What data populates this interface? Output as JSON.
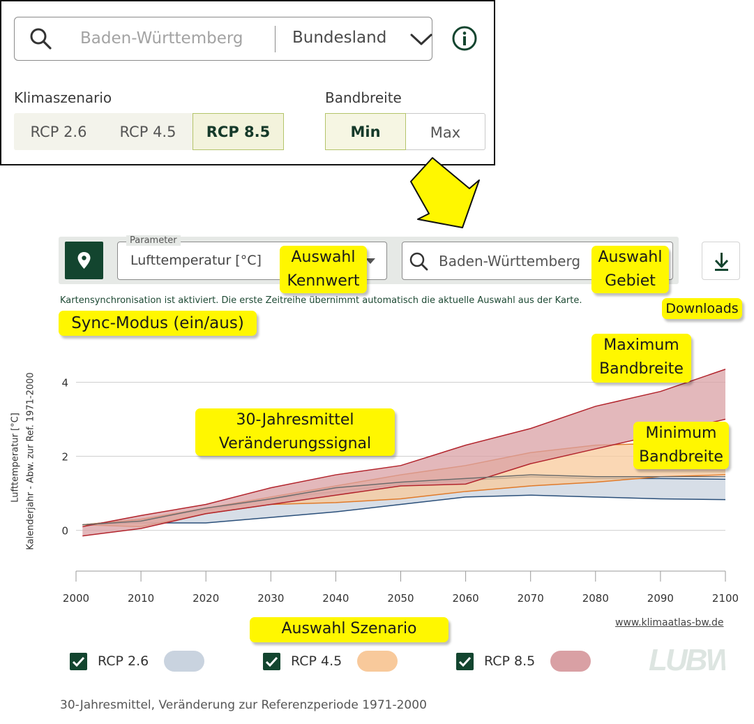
{
  "top_panel": {
    "search_placeholder": "Baden-Württemberg",
    "level_select": "Bundesland",
    "scenario_label": "Klimaszenario",
    "scenarios": [
      "RCP 2.6",
      "RCP 4.5",
      "RCP 8.5"
    ],
    "scenario_selected": "RCP 8.5",
    "bandwidth_label": "Bandbreite",
    "bandwidth_options": [
      "Min",
      "Max"
    ],
    "bandwidth_selected": "Min"
  },
  "toolbar": {
    "parameter_legend": "Parameter",
    "parameter_value": "Lufttemperatur [°C]",
    "region_value": "Baden-Württemberg",
    "sync_text": "Kartensynchronisation ist aktiviert. Die erste Zeitreihe übernimmt automatisch die aktuelle Auswahl aus der Karte."
  },
  "callouts": {
    "auswahl_kennwert": "Auswahl\nKennwert",
    "auswahl_gebiet": "Auswahl\nGebiet",
    "downloads": "Downloads",
    "sync_modus": "Sync-Modus (ein/aus)",
    "maximum_bandbreite": "Maximum\nBandbreite",
    "jahresmittel": "30-Jahresmittel\nVeränderungssignal",
    "minimum_bandbreite": "Minimum\nBandbreite",
    "auswahl_szenario": "Auswahl Szenario"
  },
  "chart_data": {
    "type": "area",
    "ylabel_line1": "Lufttemperatur [°C]",
    "ylabel_line2": "Kalenderjahr - Abw. zur Ref. 1971-2000",
    "xlim": [
      2000,
      2100
    ],
    "ylim": [
      -1.1,
      4.8
    ],
    "xticks": [
      2000,
      2010,
      2020,
      2030,
      2040,
      2050,
      2060,
      2070,
      2080,
      2090,
      2100
    ],
    "yticks": [
      0,
      2,
      4
    ],
    "grid": "horizontal",
    "x": [
      2001,
      2010,
      2020,
      2030,
      2040,
      2050,
      2060,
      2070,
      2080,
      2090,
      2100
    ],
    "series": [
      {
        "name": "RCP 2.6",
        "color": "#c9d3df",
        "line": "#2a4f7a",
        "min": [
          0.15,
          0.2,
          0.2,
          0.35,
          0.5,
          0.7,
          0.9,
          0.95,
          0.9,
          0.85,
          0.83
        ],
        "max": [
          0.15,
          0.3,
          0.55,
          0.85,
          1.05,
          1.25,
          1.35,
          1.45,
          1.4,
          1.4,
          1.38
        ]
      },
      {
        "name": "RCP 4.5",
        "color": "#f8c99b",
        "line": "#e07a2a",
        "min": [
          0.15,
          0.1,
          0.45,
          0.7,
          0.75,
          0.85,
          1.05,
          1.2,
          1.3,
          1.45,
          1.5
        ],
        "max": [
          0.15,
          0.3,
          0.6,
          0.9,
          1.2,
          1.5,
          1.75,
          2.1,
          2.3,
          2.35,
          2.3
        ]
      },
      {
        "name": "RCP 8.5",
        "color": "#d9a0a4",
        "line": "#b2242c",
        "min": [
          -0.15,
          0.05,
          0.45,
          0.7,
          0.95,
          1.2,
          1.25,
          1.8,
          2.2,
          2.6,
          3.0
        ],
        "max": [
          0.1,
          0.4,
          0.7,
          1.15,
          1.5,
          1.75,
          2.3,
          2.75,
          3.35,
          3.75,
          4.35
        ]
      }
    ],
    "center_line": [
      0.15,
      0.25,
      0.6,
      0.85,
      1.15,
      1.3,
      1.4,
      1.5,
      1.45,
      1.45,
      1.45
    ]
  },
  "legend": [
    {
      "label": "RCP 2.6",
      "color": "#c9d3df"
    },
    {
      "label": "RCP 4.5",
      "color": "#f8c99b"
    },
    {
      "label": "RCP 8.5",
      "color": "#d9a0a4"
    }
  ],
  "credit": "www.klimaatlas-bw.de",
  "logo_text": "LUBW",
  "footer": "30-Jahresmittel, Veränderung zur Referenzperiode 1971-2000"
}
